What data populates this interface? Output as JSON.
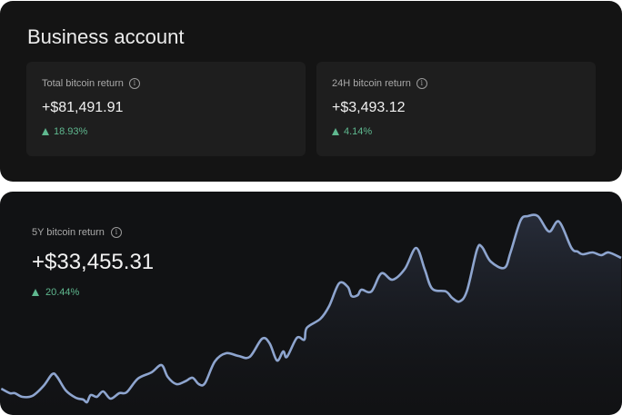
{
  "account": {
    "title": "Business account",
    "stats": [
      {
        "label": "Total bitcoin return",
        "value": "+$81,491.91",
        "change": "18.93%",
        "direction": "up"
      },
      {
        "label": "24H bitcoin return",
        "value": "+$3,493.12",
        "change": "4.14%",
        "direction": "up"
      }
    ]
  },
  "five_year": {
    "label": "5Y bitcoin return",
    "value": "+$33,455.31",
    "change": "20.44%",
    "direction": "up"
  },
  "colors": {
    "positive": "#5fb88f",
    "line": "#8ea5cf",
    "background": "#141414"
  },
  "icons": {
    "info": "info-circle-icon",
    "up": "triangle-up-icon"
  },
  "chart_data": {
    "type": "area",
    "title": "",
    "xlabel": "",
    "ylabel": "",
    "xlim": [
      0,
      5
    ],
    "grid": false,
    "axes_visible": false,
    "x": [
      0.01,
      0.08,
      0.12,
      0.18,
      0.26,
      0.35,
      0.42,
      0.46,
      0.53,
      0.61,
      0.67,
      0.7,
      0.73,
      0.78,
      0.83,
      0.89,
      0.96,
      1.02,
      1.11,
      1.22,
      1.3,
      1.35,
      1.42,
      1.49,
      1.55,
      1.6,
      1.65,
      1.73,
      1.82,
      1.92,
      2.01,
      2.11,
      2.17,
      2.23,
      2.28,
      2.31,
      2.39,
      2.45,
      2.47,
      2.58,
      2.65,
      2.73,
      2.8,
      2.83,
      2.88,
      2.91,
      2.99,
      3.07,
      3.16,
      3.26,
      3.35,
      3.42,
      3.48,
      3.59,
      3.64,
      3.7,
      3.76,
      3.84,
      3.88,
      3.95,
      4.06,
      4.11,
      4.19,
      4.25,
      4.33,
      4.42,
      4.5,
      4.6,
      4.65,
      4.69,
      4.77,
      4.84,
      4.9,
      5.0
    ],
    "series": [
      {
        "values": [
          22,
          17,
          17,
          13,
          14,
          25,
          38,
          35,
          20,
          12,
          10,
          7,
          15,
          13,
          19,
          11,
          17,
          18,
          33,
          40,
          48,
          35,
          27,
          30,
          34,
          27,
          28,
          52,
          61,
          58,
          57,
          77,
          72,
          53,
          63,
          57,
          78,
          76,
          89,
          99,
          113,
          138,
          134,
          124,
          125,
          131,
          129,
          149,
          142,
          154,
          177,
          153,
          132,
          129,
          122,
          118,
          130,
          175,
          178,
          162,
          155,
          172,
          207,
          212,
          212,
          195,
          206,
          177,
          173,
          170,
          172,
          169,
          172,
          166
        ]
      }
    ]
  }
}
